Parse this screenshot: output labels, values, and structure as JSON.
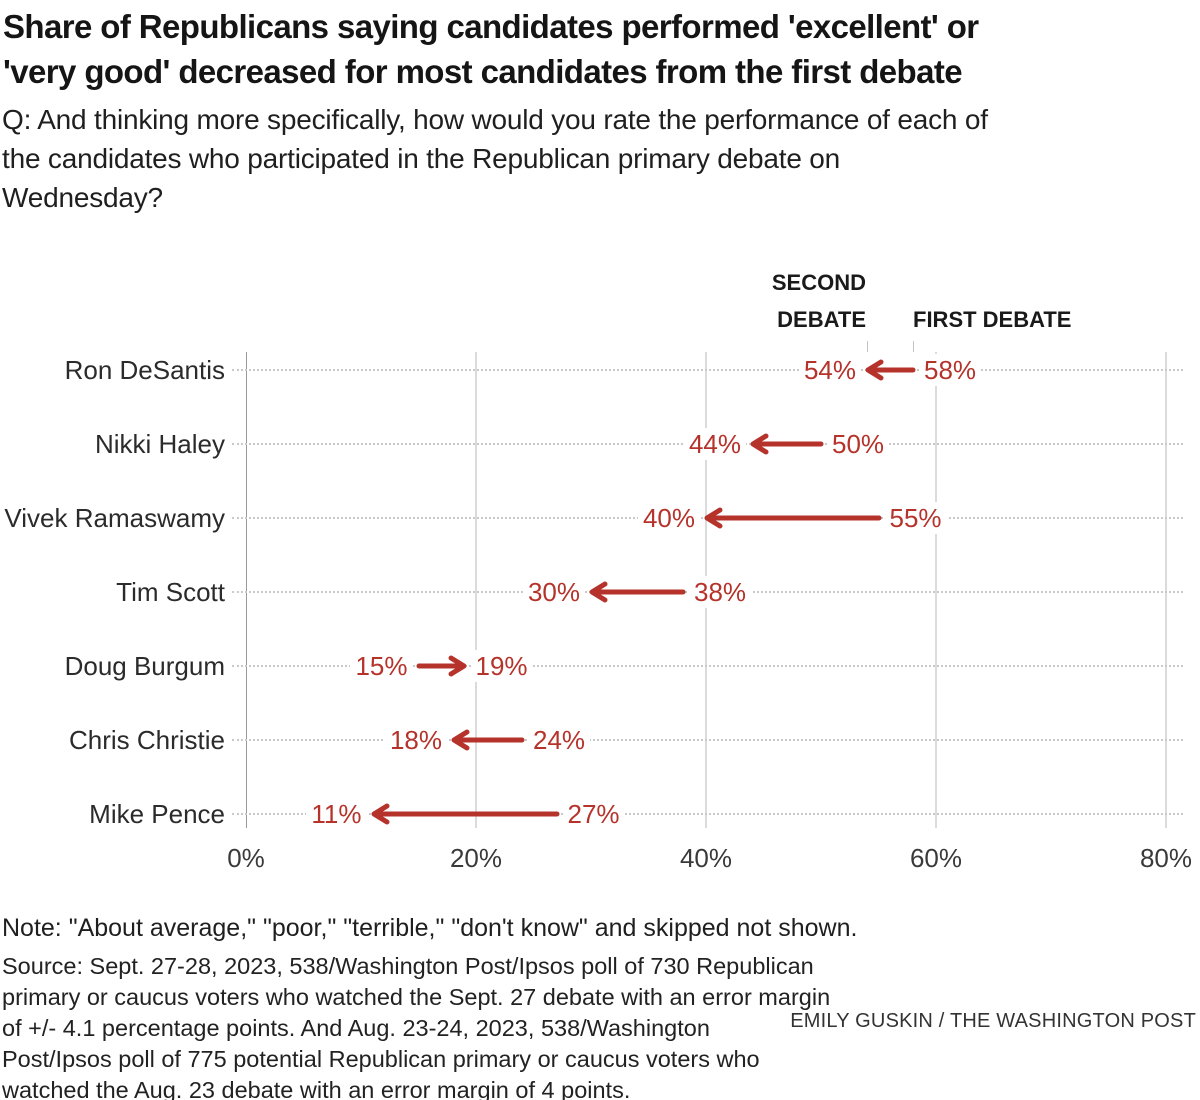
{
  "header": {
    "title": "Share of Republicans saying candidates performed 'excellent' or\n'very good' decreased for most candidates from the first debate",
    "question": "Q: And thinking more specifically, how would you rate the performance of each of\nthe candidates who participated in the Republican primary debate on\nWednesday?"
  },
  "chart_data": {
    "type": "arrow",
    "title": "Share of Republicans saying candidates performed 'excellent' or 'very good' decreased for most candidates from the first debate",
    "series_labels": {
      "second": "SECOND DEBATE",
      "first": "FIRST DEBATE"
    },
    "candidates": [
      {
        "name": "Ron DeSantis",
        "second_debate": 54,
        "first_debate": 58
      },
      {
        "name": "Nikki Haley",
        "second_debate": 44,
        "first_debate": 50
      },
      {
        "name": "Vivek Ramaswamy",
        "second_debate": 40,
        "first_debate": 55
      },
      {
        "name": "Tim Scott",
        "second_debate": 30,
        "first_debate": 38
      },
      {
        "name": "Doug Burgum",
        "second_debate": 19,
        "first_debate": 15
      },
      {
        "name": "Chris Christie",
        "second_debate": 18,
        "first_debate": 24
      },
      {
        "name": "Mike Pence",
        "second_debate": 11,
        "first_debate": 27
      }
    ],
    "unit": "%",
    "x_axis": {
      "min": 0,
      "max": 80,
      "tick_values": [
        0,
        20,
        40,
        60,
        80
      ],
      "tick_labels": [
        "0%",
        "20%",
        "40%",
        "60%",
        "80%"
      ]
    },
    "legend_position": "top-right above first row",
    "grid": "vertical solid lines; dotted horizontal leader per row",
    "arrow_color": "#b5332b",
    "zero_line_color": "#999999",
    "gridline_color": "#dbdbdb"
  },
  "footer": {
    "note": "Note: \"About average,\" \"poor,\" \"terrible,\" \"don't know\" and skipped not shown.",
    "source": "Source: Sept. 27-28, 2023, 538/Washington Post/Ipsos poll of 730 Republican\nprimary or caucus voters who watched the Sept. 27 debate with an error margin\nof +/- 4.1 percentage points. And Aug. 23-24, 2023, 538/Washington\nPost/Ipsos poll of 775 potential Republican primary or caucus voters who\nwatched the Aug. 23 debate with an error margin of 4 points.",
    "credit": "EMILY GUSKIN / THE WASHINGTON POST"
  }
}
